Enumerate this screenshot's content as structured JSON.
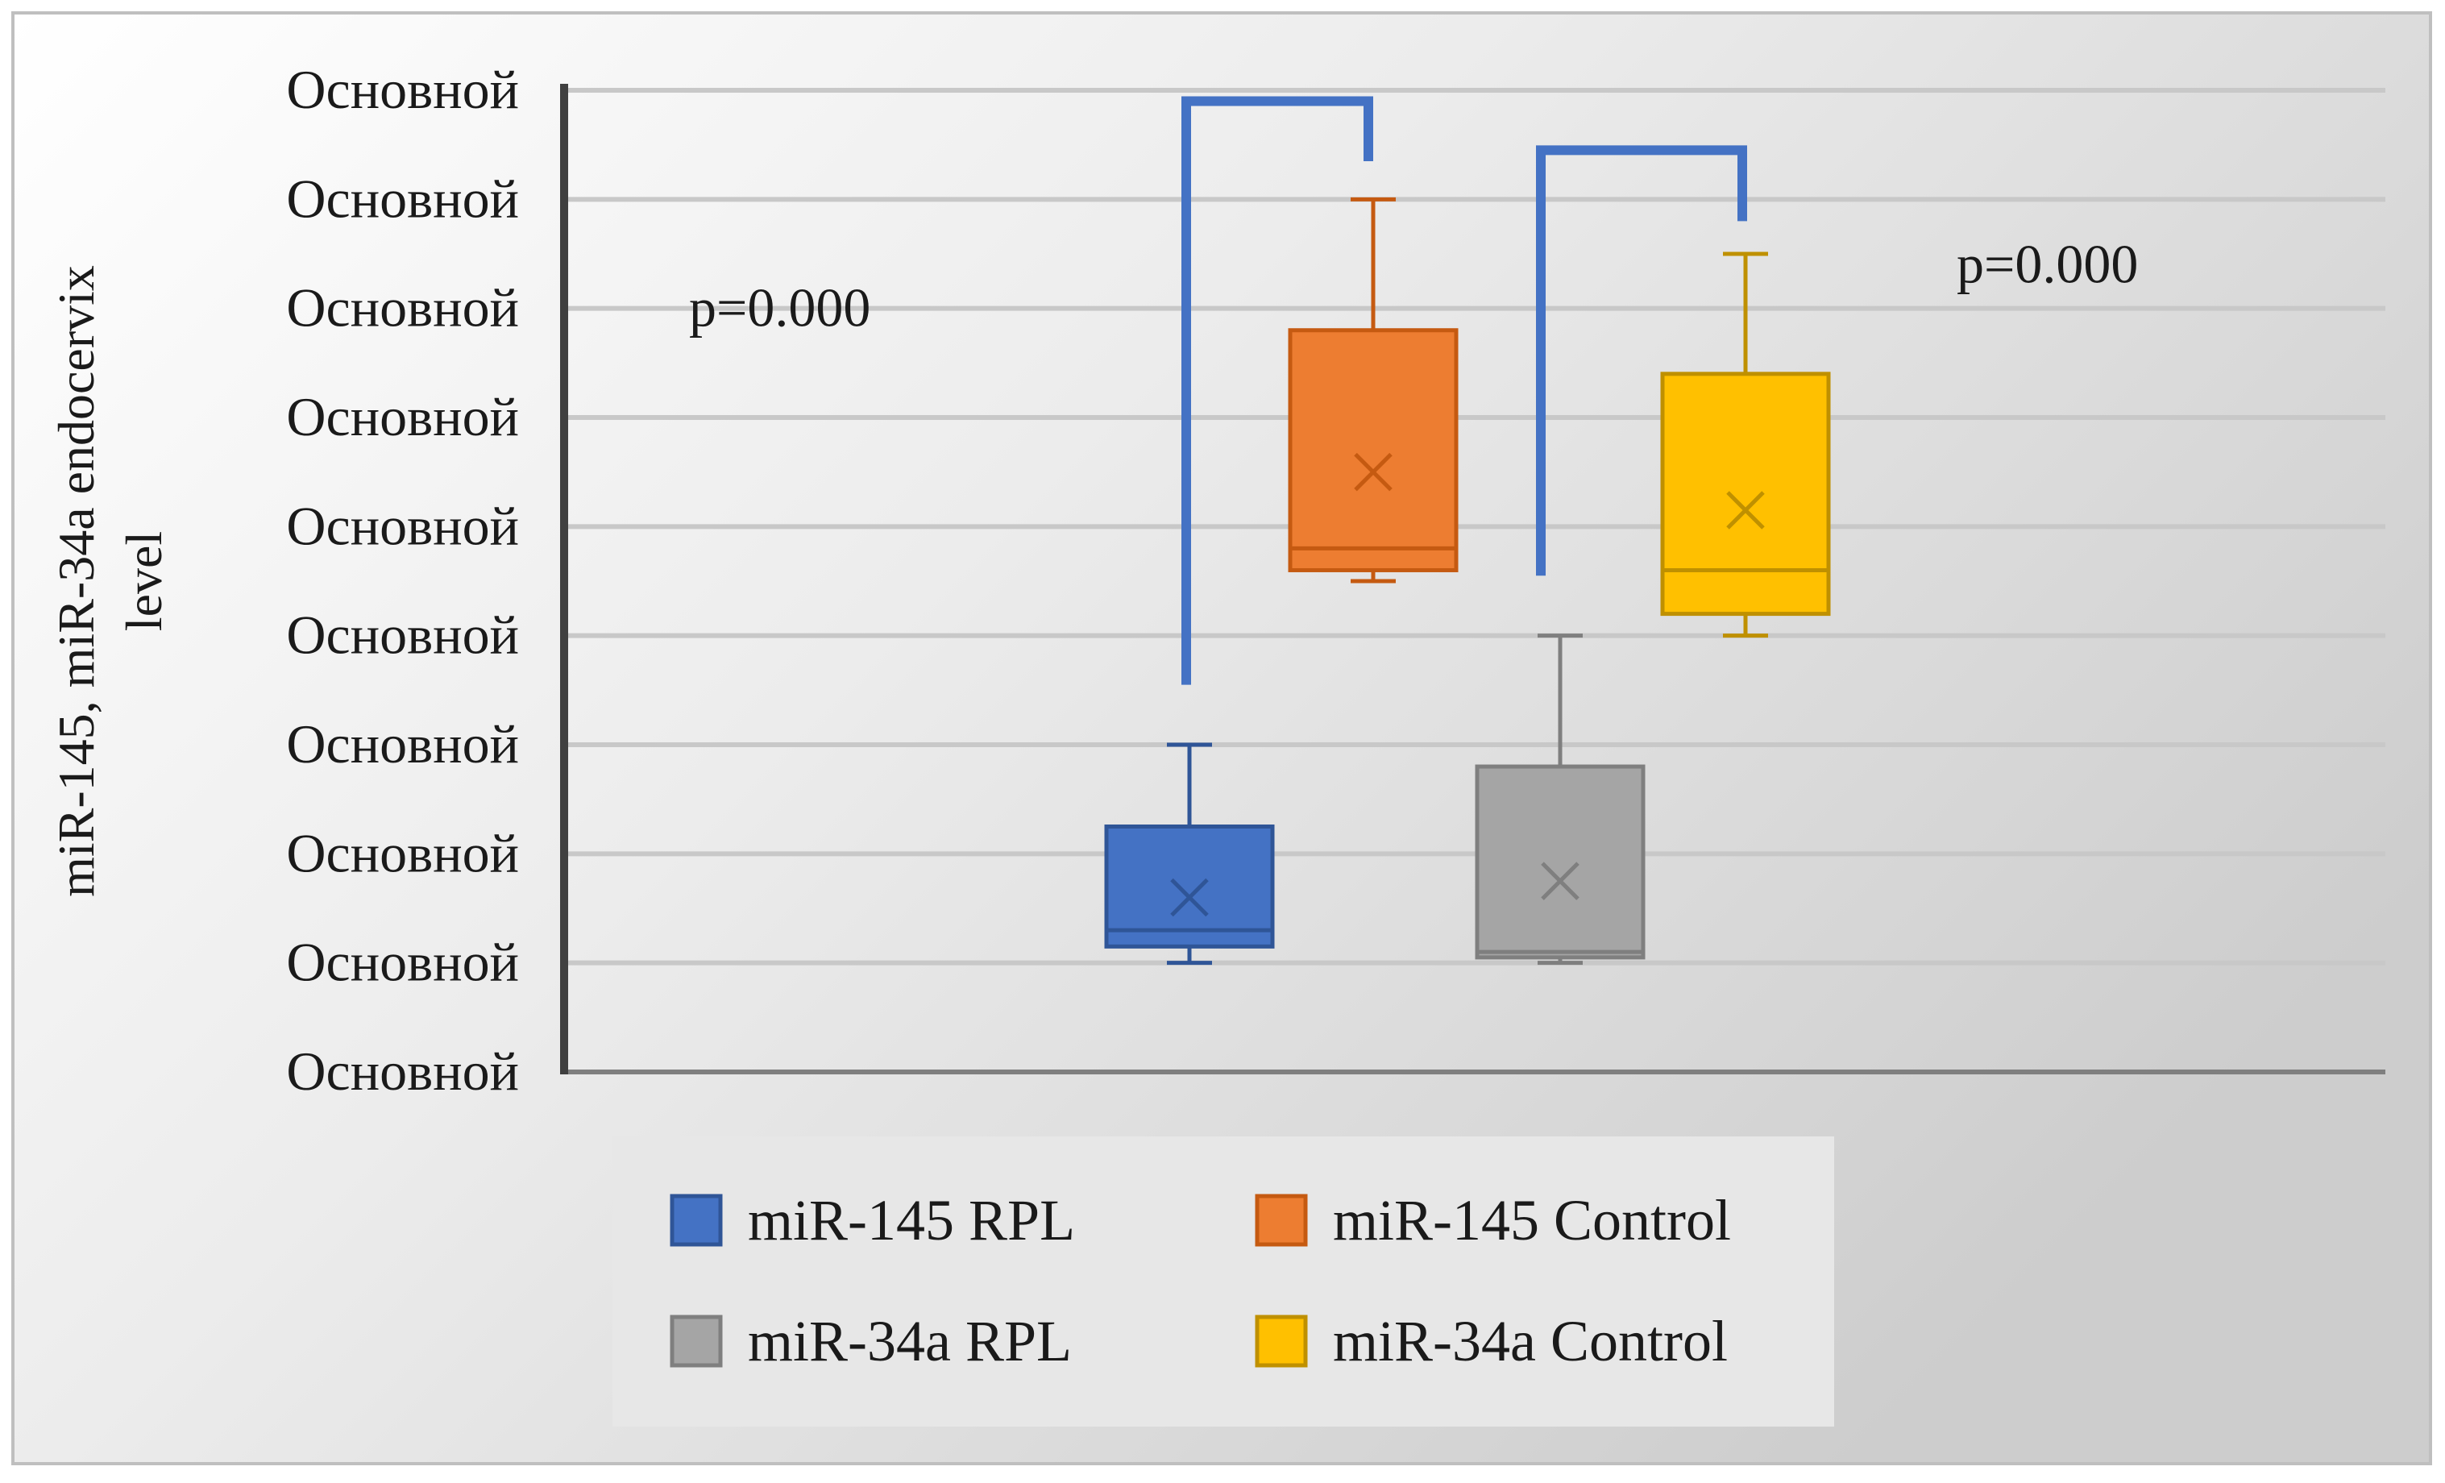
{
  "chart_data": {
    "type": "box",
    "title": "",
    "xlabel": "",
    "ylabel": "miR-145, miR-34a endocervix level",
    "ylabel_lines": [
      "miR-145, miR-34a endocervix",
      "level"
    ],
    "ylim": [
      0,
      9
    ],
    "gridlines": true,
    "y_tick_labels": [
      "Основной",
      "Основной",
      "Основной",
      "Основной",
      "Основной",
      "Основной",
      "Основной",
      "Основной",
      "Основной",
      "Основной"
    ],
    "series": [
      {
        "name": "miR-145 RPL",
        "color": "#4472C4",
        "border": "#2F5597",
        "min": 1.0,
        "q1": 1.15,
        "median": 1.3,
        "q3": 2.25,
        "max": 3.0,
        "mean": 1.6
      },
      {
        "name": "miR-145 Control",
        "color": "#ED7D31",
        "border": "#C55A11",
        "min": 4.5,
        "q1": 4.6,
        "median": 4.8,
        "q3": 6.8,
        "max": 8.0,
        "mean": 5.5
      },
      {
        "name": "miR-34a RPL",
        "color": "#A5A5A5",
        "border": "#7F7F7F",
        "min": 1.0,
        "q1": 1.05,
        "median": 1.1,
        "q3": 2.8,
        "max": 4.0,
        "mean": 1.75
      },
      {
        "name": "miR-34a Control",
        "color": "#FFC000",
        "border": "#BF9000",
        "min": 4.0,
        "q1": 4.2,
        "median": 4.6,
        "q3": 6.4,
        "max": 7.5,
        "mean": 5.15
      }
    ],
    "comparisons": [
      {
        "between": [
          "miR-145 RPL",
          "miR-145 Control"
        ],
        "label": "p=0.000",
        "color": "#4472C4"
      },
      {
        "between": [
          "miR-34a RPL",
          "miR-34a Control"
        ],
        "label": "p=0.000",
        "color": "#4472C4"
      }
    ],
    "legend": {
      "position": "bottom",
      "columns": 2
    }
  }
}
